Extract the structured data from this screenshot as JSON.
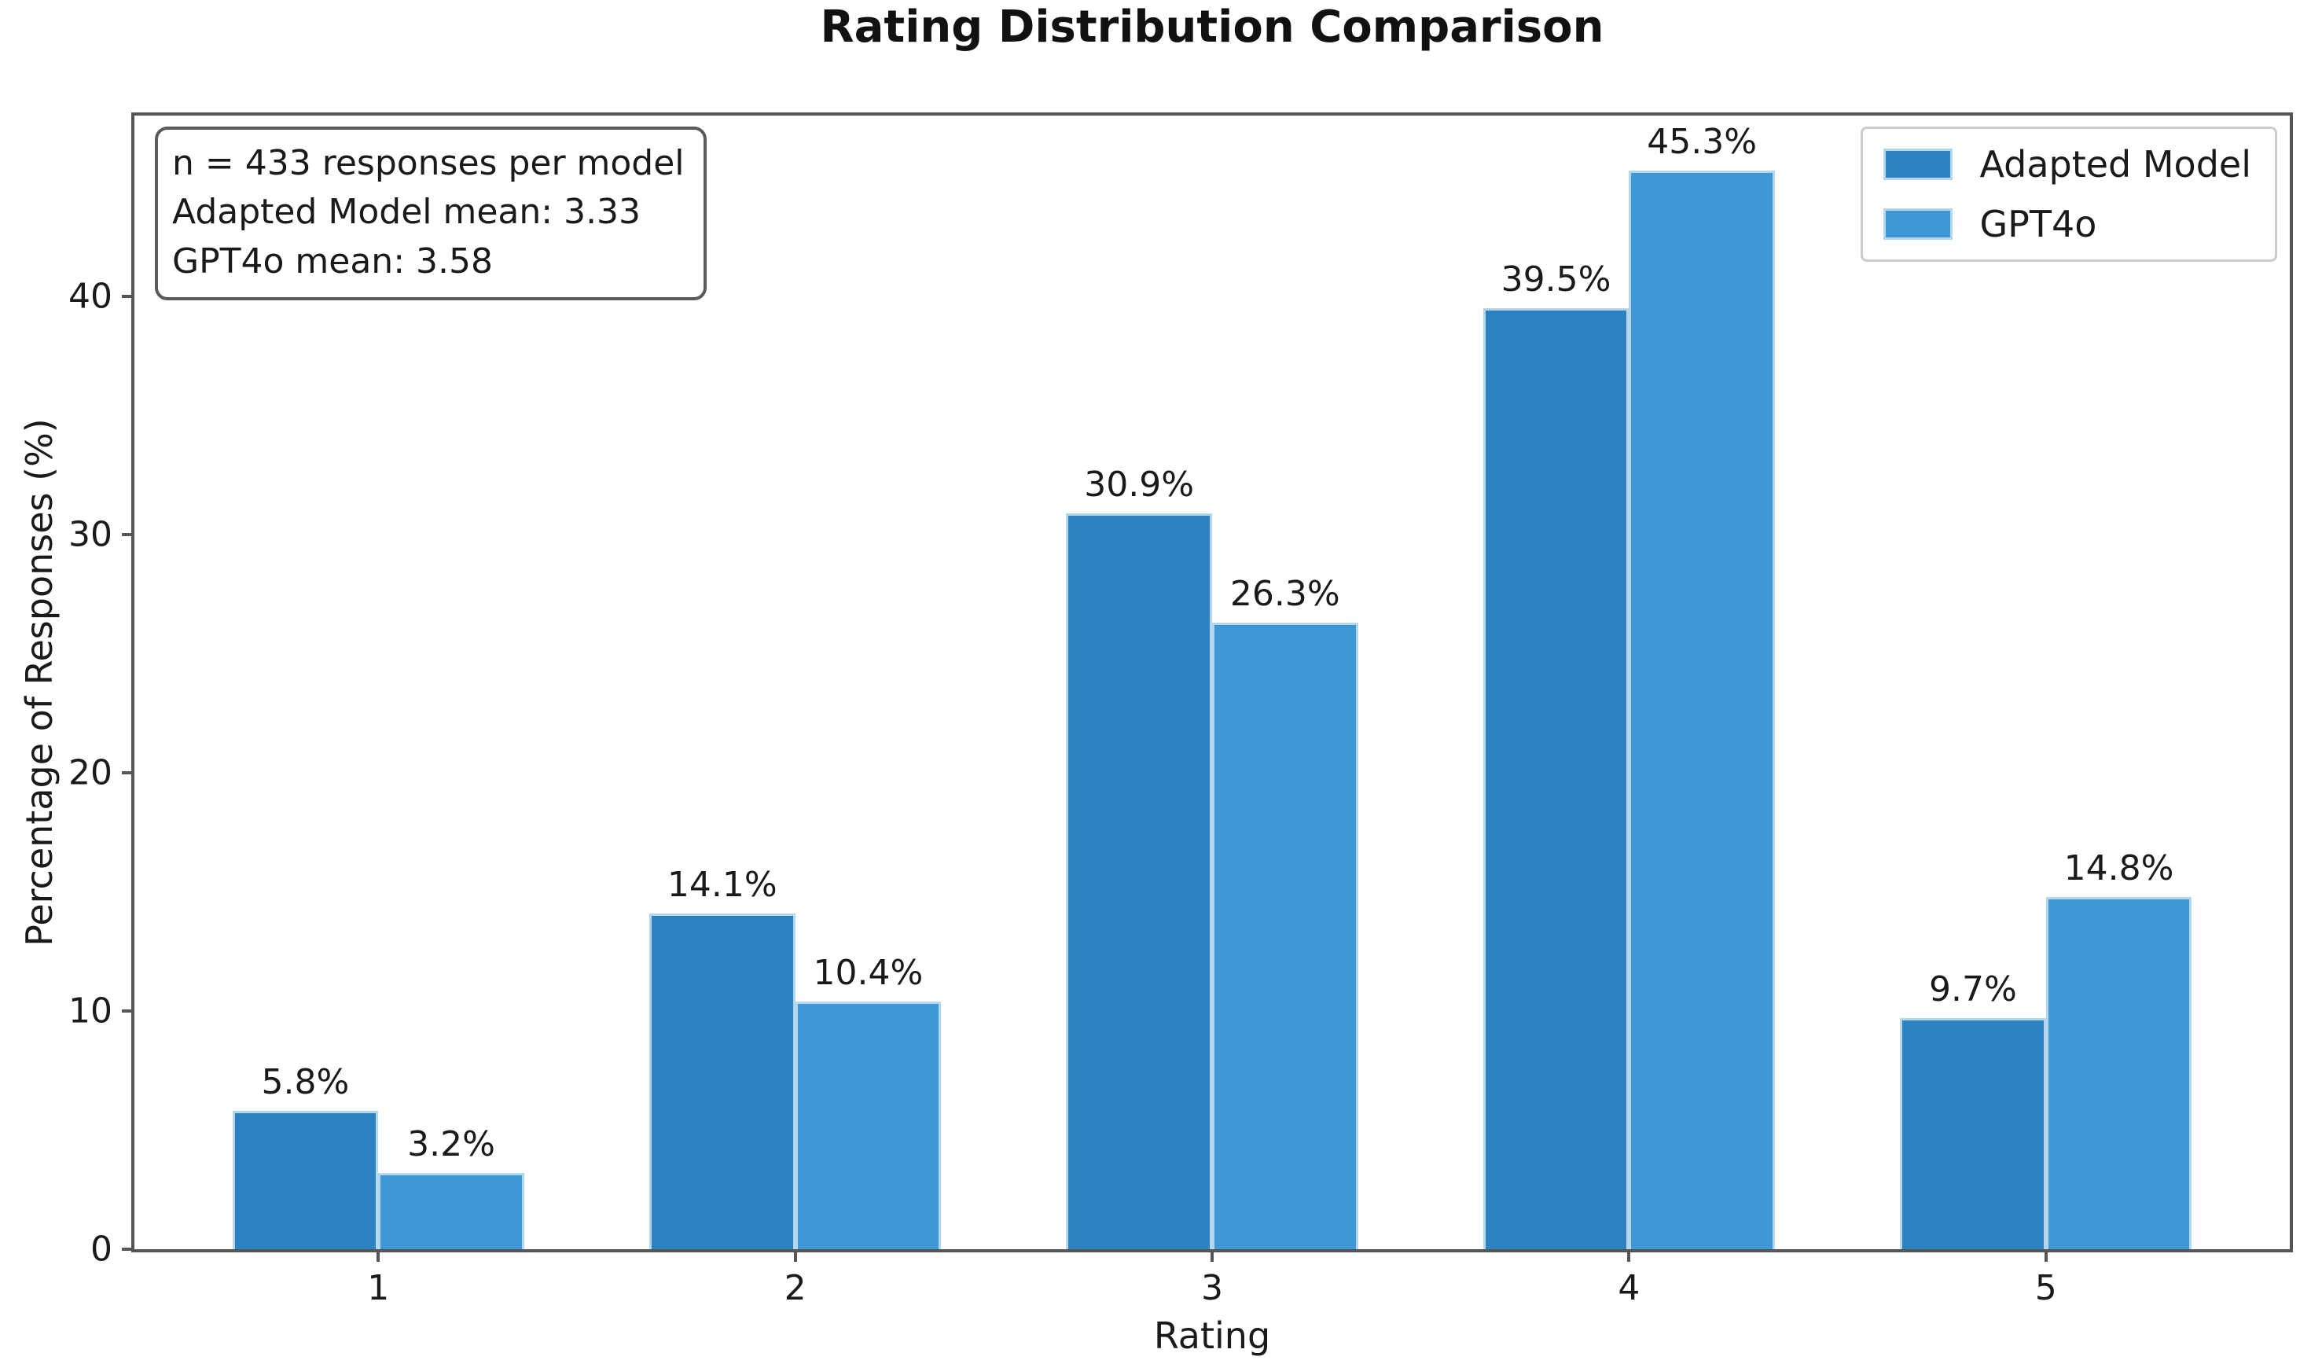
{
  "chart_data": {
    "type": "bar",
    "title": "Rating Distribution Comparison",
    "categories": [
      "1",
      "2",
      "3",
      "4",
      "5"
    ],
    "series": [
      {
        "name": "Adapted Model",
        "color": "#2d81c1",
        "values": [
          5.8,
          14.1,
          30.9,
          39.5,
          9.7
        ]
      },
      {
        "name": "GPT4o",
        "color": "#3f98d4",
        "values": [
          3.2,
          10.4,
          26.3,
          45.3,
          14.8
        ]
      }
    ],
    "value_label_suffix": "%",
    "xlabel": "Rating",
    "ylabel": "Percentage of Responses (%)",
    "ylim": [
      0,
      47.6
    ],
    "yticks": [
      0,
      10,
      20,
      30,
      40
    ],
    "grid": false,
    "legend_position": "top-right",
    "bar_edge_color": "#b5d7ee",
    "annotation": {
      "lines": [
        "n = 433 responses per model",
        "Adapted Model mean: 3.33",
        "GPT4o mean: 3.58"
      ]
    }
  }
}
